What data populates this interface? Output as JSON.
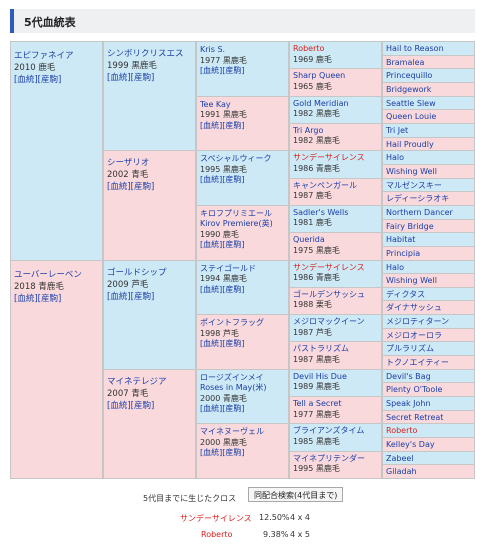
{
  "title": "5代血統表",
  "gen1": [
    {
      "name": "エピファネイア",
      "info": "2010 鹿毛",
      "links": "[血統][産駒]"
    },
    {
      "name": "ユーバーレーベン",
      "info": "2018 青鹿毛",
      "links": "[血統][産駒]"
    }
  ],
  "gen2": [
    {
      "name": "シンボリクリスエス",
      "info": "1999 黒鹿毛",
      "links": "[血統][産駒]"
    },
    {
      "name": "シーザリオ",
      "info": "2002 青毛",
      "links": "[血統][産駒]"
    },
    {
      "name": "ゴールドシップ",
      "info": "2009 芦毛",
      "links": "[血統][産駒]"
    },
    {
      "name": "マイネテレジア",
      "info": "2007 青毛",
      "links": "[血統][産駒]"
    }
  ],
  "gen3": [
    {
      "name": "Kris S.",
      "name2": "",
      "info": "1977 黒鹿毛",
      "links": "[血統][産駒]"
    },
    {
      "name": "Tee Kay",
      "name2": "",
      "info": "1991 黒鹿毛",
      "links": "[血統][産駒]"
    },
    {
      "name": "スペシャルウィーク",
      "name2": "",
      "info": "1995 黒鹿毛",
      "links": "[血統][産駒]"
    },
    {
      "name": "キロフプリミエール",
      "name2": "Kirov Premiere(英)",
      "info": "1990 鹿毛",
      "links": "[血統][産駒]"
    },
    {
      "name": "ステイゴールド",
      "name2": "",
      "info": "1994 黒鹿毛",
      "links": "[血統][産駒]"
    },
    {
      "name": "ポイントフラッグ",
      "name2": "",
      "info": "1998 芦毛",
      "links": "[血統][産駒]"
    },
    {
      "name": "ロージズインメイ",
      "name2": "Roses in May(米)",
      "info": "2000 青鹿毛",
      "links": "[血統][産駒]"
    },
    {
      "name": "マイネヌーヴェル",
      "name2": "",
      "info": "2000 黒鹿毛",
      "links": "[血統][産駒]"
    }
  ],
  "gen4": [
    {
      "name": "Roberto",
      "info": "1969 鹿毛",
      "cross": true
    },
    {
      "name": "Sharp Queen",
      "info": "1965 鹿毛",
      "cross": false
    },
    {
      "name": "Gold Meridian",
      "info": "1982 黒鹿毛",
      "cross": false
    },
    {
      "name": "Tri Argo",
      "info": "1982 黒鹿毛",
      "cross": false
    },
    {
      "name": "サンデーサイレンス",
      "info": "1986 青鹿毛",
      "cross": true
    },
    {
      "name": "キャンペンガール",
      "info": "1987 鹿毛",
      "cross": false
    },
    {
      "name": "Sadler's Wells",
      "info": "1981 鹿毛",
      "cross": false
    },
    {
      "name": "Querida",
      "info": "1975 黒鹿毛",
      "cross": false
    },
    {
      "name": "サンデーサイレンス",
      "info": "1986 青鹿毛",
      "cross": true
    },
    {
      "name": "ゴールデンサッシュ",
      "info": "1988 栗毛",
      "cross": false
    },
    {
      "name": "メジロマックイーン",
      "info": "1987 芦毛",
      "cross": false
    },
    {
      "name": "パストラリズム",
      "info": "1987 黒鹿毛",
      "cross": false
    },
    {
      "name": "Devil His Due",
      "info": "1989 黒鹿毛",
      "cross": false
    },
    {
      "name": "Tell a Secret",
      "info": "1977 黒鹿毛",
      "cross": false
    },
    {
      "name": "ブライアンズタイム",
      "info": "1985 黒鹿毛",
      "cross": false
    },
    {
      "name": "マイネプリテンダー",
      "info": "1995 黒鹿毛",
      "cross": false
    }
  ],
  "gen5": [
    {
      "name": "Hail to Reason",
      "cross": false
    },
    {
      "name": "Bramalea",
      "cross": false
    },
    {
      "name": "Princequillo",
      "cross": false
    },
    {
      "name": "Bridgework",
      "cross": false
    },
    {
      "name": "Seattle Slew",
      "cross": false
    },
    {
      "name": "Queen Louie",
      "cross": false
    },
    {
      "name": "Tri Jet",
      "cross": false
    },
    {
      "name": "Hail Proudly",
      "cross": false
    },
    {
      "name": "Halo",
      "cross": false
    },
    {
      "name": "Wishing Well",
      "cross": false
    },
    {
      "name": "マルゼンスキー",
      "cross": false
    },
    {
      "name": "レディーシラオキ",
      "cross": false
    },
    {
      "name": "Northern Dancer",
      "cross": false
    },
    {
      "name": "Fairy Bridge",
      "cross": false
    },
    {
      "name": "Habitat",
      "cross": false
    },
    {
      "name": "Principia",
      "cross": false
    },
    {
      "name": "Halo",
      "cross": false
    },
    {
      "name": "Wishing Well",
      "cross": false
    },
    {
      "name": "ディクタス",
      "cross": false
    },
    {
      "name": "ダイナサッシュ",
      "cross": false
    },
    {
      "name": "メジロティターン",
      "cross": false
    },
    {
      "name": "メジロオーロラ",
      "cross": false
    },
    {
      "name": "プルラリズム",
      "cross": false
    },
    {
      "name": "トクノエイティー",
      "cross": false
    },
    {
      "name": "Devil's Bag",
      "cross": false
    },
    {
      "name": "Plenty O'Toole",
      "cross": false
    },
    {
      "name": "Speak John",
      "cross": false
    },
    {
      "name": "Secret Retreat",
      "cross": false
    },
    {
      "name": "Roberto",
      "cross": true
    },
    {
      "name": "Kelley's Day",
      "cross": false
    },
    {
      "name": "Zabeel",
      "cross": false
    },
    {
      "name": "Giladah",
      "cross": false
    }
  ],
  "cross": {
    "label": "5代目までに生じたクロス",
    "button": "同配合検索(4代目まで)",
    "items": [
      {
        "name": "サンデーサイレンス",
        "pct": "12.50%",
        "gen": "4 x 4"
      },
      {
        "name": "Roberto",
        "pct": "9.38%",
        "gen": "4 x 5"
      }
    ]
  },
  "colors": {
    "male": "#cde9f5",
    "female": "#f9d9db",
    "link": "#1a3ea8",
    "cross": "#d8211e",
    "accent": "#2c5bc2"
  }
}
